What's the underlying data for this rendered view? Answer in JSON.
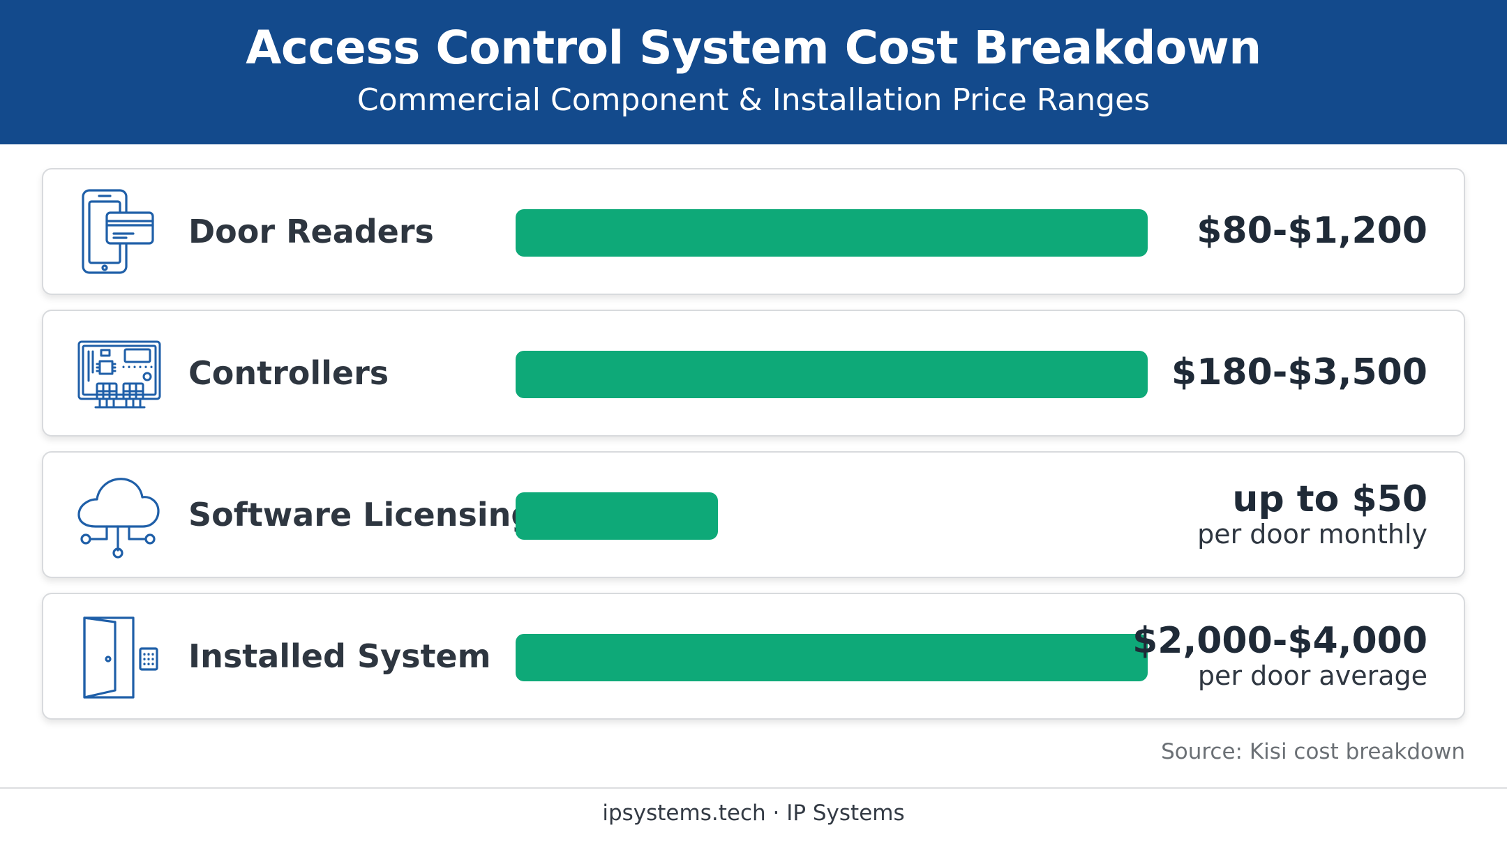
{
  "header": {
    "title": "Access Control System Cost Breakdown",
    "subtitle": "Commercial Component & Installation Price Ranges"
  },
  "colors": {
    "header_bg": "#134a8c",
    "bar": "#0ea978",
    "icon_stroke": "#1f5fa8"
  },
  "chart_data": {
    "type": "bar",
    "orientation": "horizontal",
    "title": "Access Control System Cost Breakdown",
    "subtitle": "Commercial Component & Installation Price Ranges",
    "xlabel": "",
    "ylabel": "",
    "grid": false,
    "max_fraction": 1.0,
    "categories": [
      "Door Readers",
      "Controllers",
      "Software Licensing",
      "Installed System"
    ],
    "rows": [
      {
        "label": "Door Readers",
        "icon": "card-reader-icon",
        "value_text": "$80-$1,200",
        "sub_text": "",
        "bar_fraction": 1.0
      },
      {
        "label": "Controllers",
        "icon": "circuit-board-icon",
        "value_text": "$180-$3,500",
        "sub_text": "",
        "bar_fraction": 1.0
      },
      {
        "label": "Software Licensing",
        "icon": "cloud-network-icon",
        "value_text": "up to $50",
        "sub_text": "per door monthly",
        "bar_fraction": 0.32
      },
      {
        "label": "Installed System",
        "icon": "door-keypad-icon",
        "value_text": "$2,000-$4,000",
        "sub_text": "per door average",
        "bar_fraction": 1.0
      }
    ]
  },
  "source": "Source: Kisi cost breakdown",
  "footer": "ipsystems.tech · IP Systems"
}
